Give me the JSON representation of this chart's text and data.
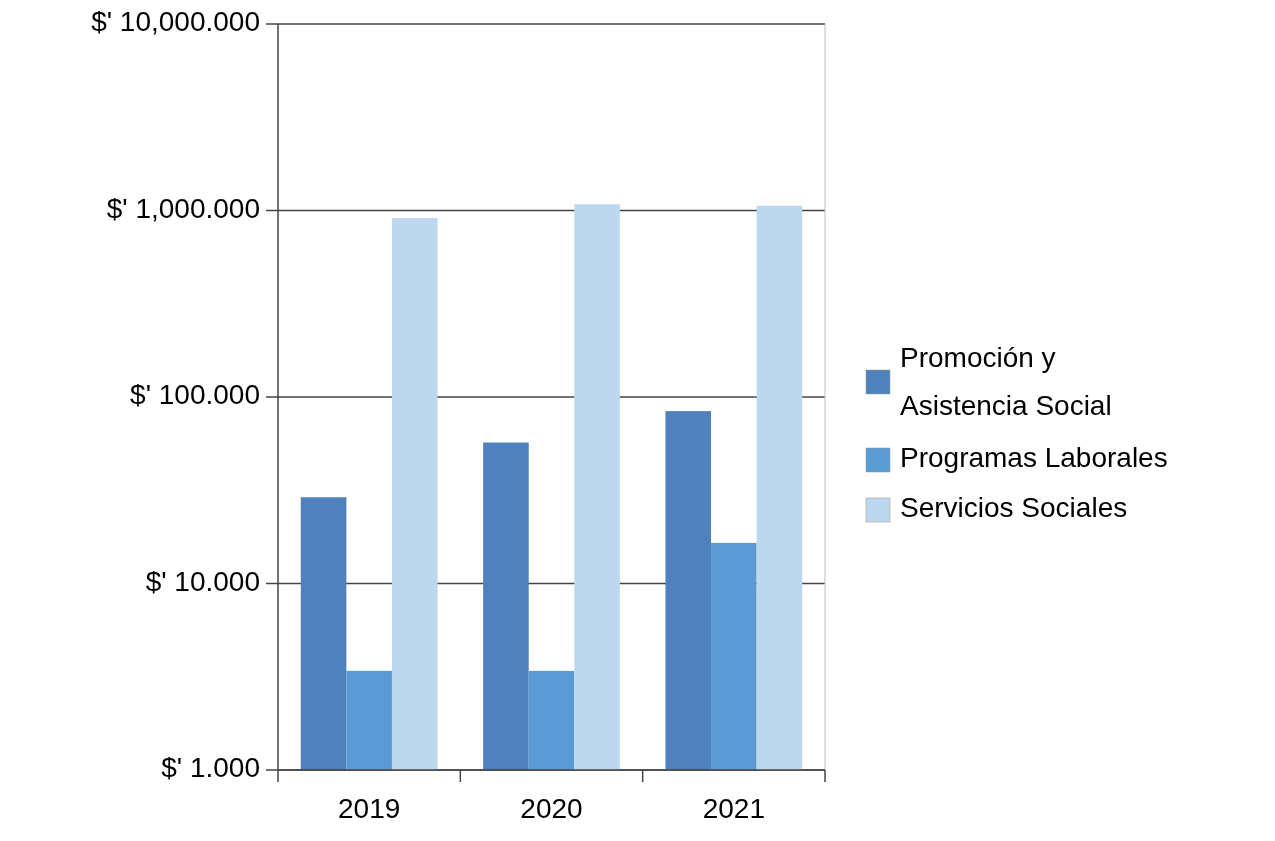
{
  "chart_data": {
    "type": "bar",
    "categories": [
      "2019",
      "2020",
      "2021"
    ],
    "series": [
      {
        "name": "Promoción y Asistencia Social",
        "color": "#4f81bd",
        "values": [
          29,
          57,
          84
        ]
      },
      {
        "name": "Programas Laborales",
        "color": "#5b9bd5",
        "values": [
          3.4,
          3.4,
          16.5
        ]
      },
      {
        "name": "Servicios Sociales",
        "color": "#bdd7ee",
        "values": [
          910,
          1080,
          1060
        ]
      }
    ],
    "log": true,
    "ylim": [
      1,
      10000
    ],
    "yticks": [
      {
        "value": 1,
        "label": "$' 1.000"
      },
      {
        "value": 10,
        "label": "$' 10.000"
      },
      {
        "value": 100,
        "label": "$' 100.000"
      },
      {
        "value": 1000,
        "label": "$' 1,000.000"
      },
      {
        "value": 10000,
        "label": "$' 10,000.000"
      }
    ],
    "grid": "y",
    "legend": "right"
  }
}
